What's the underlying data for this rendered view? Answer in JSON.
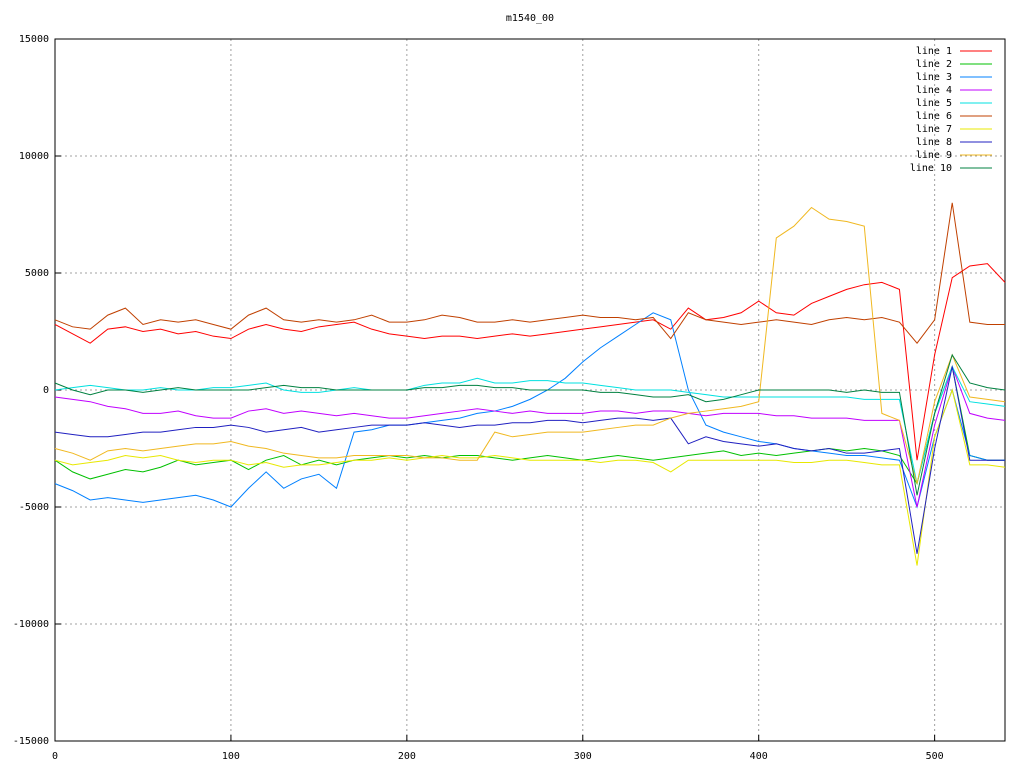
{
  "chart_data": {
    "type": "line",
    "title": "m1540_00",
    "x": [
      0,
      10,
      20,
      30,
      40,
      50,
      60,
      70,
      80,
      90,
      100,
      110,
      120,
      130,
      140,
      150,
      160,
      170,
      180,
      190,
      200,
      210,
      220,
      230,
      240,
      250,
      260,
      270,
      280,
      290,
      300,
      310,
      320,
      330,
      340,
      350,
      360,
      370,
      380,
      390,
      400,
      410,
      420,
      430,
      440,
      450,
      460,
      470,
      480,
      490,
      500,
      510,
      520,
      530,
      540
    ],
    "xlim": [
      0,
      540
    ],
    "xticks": [
      0,
      100,
      200,
      300,
      400,
      500
    ],
    "ylim": [
      -15000,
      15000
    ],
    "yticks": [
      -15000,
      -10000,
      -5000,
      0,
      5000,
      10000,
      15000
    ],
    "grid": true,
    "legend": "top-right",
    "series": [
      {
        "name": "line 1",
        "color": "#ff0000",
        "values": [
          2800,
          2400,
          2000,
          2600,
          2700,
          2500,
          2600,
          2400,
          2500,
          2300,
          2200,
          2600,
          2800,
          2600,
          2500,
          2700,
          2800,
          2900,
          2600,
          2400,
          2300,
          2200,
          2300,
          2300,
          2200,
          2300,
          2400,
          2300,
          2400,
          2500,
          2600,
          2700,
          2800,
          2900,
          3000,
          2600,
          3500,
          3000,
          3100,
          3300,
          3800,
          3300,
          3200,
          3700,
          4000,
          4300,
          4500,
          4600,
          4300,
          -3000,
          1500,
          4800,
          5300,
          5400,
          4600
        ]
      },
      {
        "name": "line 2",
        "color": "#00c000",
        "values": [
          -3000,
          -3500,
          -3800,
          -3600,
          -3400,
          -3500,
          -3300,
          -3000,
          -3200,
          -3100,
          -3000,
          -3400,
          -3000,
          -2800,
          -3200,
          -3000,
          -3200,
          -3000,
          -2900,
          -2800,
          -2900,
          -2800,
          -2900,
          -2800,
          -2800,
          -2900,
          -3000,
          -2900,
          -2800,
          -2900,
          -3000,
          -2900,
          -2800,
          -2900,
          -3000,
          -2900,
          -2800,
          -2700,
          -2600,
          -2800,
          -2700,
          -2800,
          -2700,
          -2600,
          -2500,
          -2600,
          -2500,
          -2600,
          -2800,
          -4000,
          -1000,
          1000,
          -2800,
          -3000,
          -3000
        ]
      },
      {
        "name": "line 3",
        "color": "#0080ff",
        "values": [
          -4000,
          -4300,
          -4700,
          -4600,
          -4700,
          -4800,
          -4700,
          -4600,
          -4500,
          -4700,
          -5000,
          -4200,
          -3500,
          -4200,
          -3800,
          -3600,
          -4200,
          -1800,
          -1700,
          -1500,
          -1500,
          -1400,
          -1300,
          -1200,
          -1000,
          -900,
          -700,
          -400,
          0,
          500,
          1200,
          1800,
          2300,
          2800,
          3300,
          3000,
          0,
          -1500,
          -1800,
          -2000,
          -2200,
          -2300,
          -2500,
          -2600,
          -2700,
          -2800,
          -2800,
          -2900,
          -3000,
          -5000,
          -2000,
          0,
          -2800,
          -3000,
          -3000
        ]
      },
      {
        "name": "line 4",
        "color": "#c000ff",
        "values": [
          -300,
          -400,
          -500,
          -700,
          -800,
          -1000,
          -1000,
          -900,
          -1100,
          -1200,
          -1200,
          -900,
          -800,
          -1000,
          -900,
          -1000,
          -1100,
          -1000,
          -1100,
          -1200,
          -1200,
          -1100,
          -1000,
          -900,
          -800,
          -900,
          -1000,
          -900,
          -1000,
          -1000,
          -1000,
          -900,
          -900,
          -1000,
          -900,
          -900,
          -1000,
          -1100,
          -1000,
          -1000,
          -1000,
          -1100,
          -1100,
          -1200,
          -1200,
          -1200,
          -1300,
          -1300,
          -1300,
          -5000,
          -1500,
          1000,
          -1000,
          -1200,
          -1300
        ]
      },
      {
        "name": "line 5",
        "color": "#00e0e0",
        "values": [
          0,
          100,
          200,
          100,
          0,
          0,
          100,
          0,
          0,
          100,
          100,
          200,
          300,
          0,
          -100,
          -100,
          0,
          100,
          0,
          0,
          0,
          200,
          300,
          300,
          500,
          300,
          300,
          400,
          400,
          300,
          300,
          200,
          100,
          0,
          0,
          0,
          -100,
          -200,
          -300,
          -300,
          -300,
          -300,
          -300,
          -300,
          -300,
          -300,
          -400,
          -400,
          -400,
          -4000,
          -1000,
          1000,
          -500,
          -600,
          -700
        ]
      },
      {
        "name": "line 6",
        "color": "#c04000",
        "values": [
          3000,
          2700,
          2600,
          3200,
          3500,
          2800,
          3000,
          2900,
          3000,
          2800,
          2600,
          3200,
          3500,
          3000,
          2900,
          3000,
          2900,
          3000,
          3200,
          2900,
          2900,
          3000,
          3200,
          3100,
          2900,
          2900,
          3000,
          2900,
          3000,
          3100,
          3200,
          3100,
          3100,
          3000,
          3100,
          2200,
          3300,
          3000,
          2900,
          2800,
          2900,
          3000,
          2900,
          2800,
          3000,
          3100,
          3000,
          3100,
          2900,
          2000,
          3000,
          8000,
          2900,
          2800,
          2800
        ]
      },
      {
        "name": "line 7",
        "color": "#e8e800",
        "values": [
          -3000,
          -3200,
          -3100,
          -3000,
          -2800,
          -2900,
          -2800,
          -3000,
          -3100,
          -3000,
          -3000,
          -3200,
          -3100,
          -3300,
          -3200,
          -3200,
          -3100,
          -3000,
          -3000,
          -2900,
          -3000,
          -2900,
          -2800,
          -2900,
          -2900,
          -2800,
          -2900,
          -3000,
          -3000,
          -3000,
          -3000,
          -3100,
          -3000,
          -3000,
          -3100,
          -3500,
          -3000,
          -3000,
          -3000,
          -3000,
          -3000,
          -3000,
          -3100,
          -3100,
          -3000,
          -3000,
          -3100,
          -3200,
          -3200,
          -7500,
          -2000,
          0,
          -3200,
          -3200,
          -3300
        ]
      },
      {
        "name": "line 8",
        "color": "#2020c0",
        "values": [
          -1800,
          -1900,
          -2000,
          -2000,
          -1900,
          -1800,
          -1800,
          -1700,
          -1600,
          -1600,
          -1500,
          -1600,
          -1800,
          -1700,
          -1600,
          -1800,
          -1700,
          -1600,
          -1500,
          -1500,
          -1500,
          -1400,
          -1500,
          -1600,
          -1500,
          -1500,
          -1400,
          -1400,
          -1300,
          -1300,
          -1400,
          -1300,
          -1200,
          -1200,
          -1300,
          -1200,
          -2300,
          -2000,
          -2200,
          -2300,
          -2400,
          -2300,
          -2500,
          -2600,
          -2500,
          -2700,
          -2700,
          -2600,
          -2500,
          -7000,
          -2500,
          1000,
          -3000,
          -3000,
          -3000
        ]
      },
      {
        "name": "line 9",
        "color": "#f0b820",
        "values": [
          -2500,
          -2700,
          -3000,
          -2600,
          -2500,
          -2600,
          -2500,
          -2400,
          -2300,
          -2300,
          -2200,
          -2400,
          -2500,
          -2700,
          -2800,
          -2900,
          -2900,
          -2800,
          -2800,
          -2800,
          -2800,
          -2900,
          -2900,
          -3000,
          -3000,
          -1800,
          -2000,
          -1900,
          -1800,
          -1800,
          -1800,
          -1700,
          -1600,
          -1500,
          -1500,
          -1200,
          -1000,
          -900,
          -800,
          -700,
          -500,
          6500,
          7000,
          7800,
          7300,
          7200,
          7000,
          -1000,
          -1300,
          -4000,
          -500,
          1500,
          -300,
          -400,
          -500
        ]
      },
      {
        "name": "line 10",
        "color": "#008040",
        "values": [
          300,
          0,
          -200,
          0,
          0,
          -100,
          0,
          100,
          0,
          0,
          0,
          0,
          100,
          200,
          100,
          100,
          0,
          0,
          0,
          0,
          0,
          100,
          100,
          200,
          200,
          100,
          100,
          0,
          0,
          0,
          0,
          -100,
          -100,
          -200,
          -300,
          -300,
          -200,
          -500,
          -400,
          -200,
          0,
          0,
          0,
          0,
          0,
          -100,
          0,
          -100,
          -100,
          -4500,
          -1000,
          1500,
          300,
          100,
          0
        ]
      }
    ]
  }
}
